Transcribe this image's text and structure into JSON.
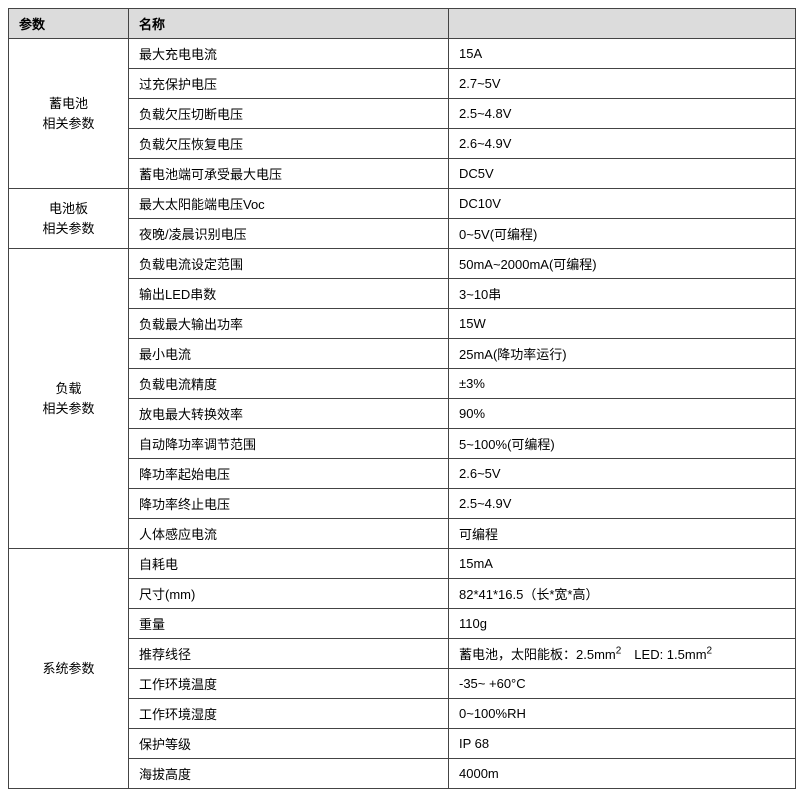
{
  "headers": {
    "c1": "参数",
    "c2": "名称",
    "c3": ""
  },
  "groups": [
    {
      "label": "蓄电池\n相关参数",
      "rows": [
        {
          "name": "最大充电电流",
          "value": "15A"
        },
        {
          "name": "过充保护电压",
          "value": "2.7~5V"
        },
        {
          "name": "负载欠压切断电压",
          "value": "2.5~4.8V"
        },
        {
          "name": "负载欠压恢复电压",
          "value": "2.6~4.9V"
        },
        {
          "name": "蓄电池端可承受最大电压",
          "value": "DC5V"
        }
      ]
    },
    {
      "label": "电池板\n相关参数",
      "rows": [
        {
          "name": "最大太阳能端电压Voc",
          "value": "DC10V"
        },
        {
          "name": "夜晚/凌晨识别电压",
          "value": "0~5V(可编程)"
        }
      ]
    },
    {
      "label": "负载\n相关参数",
      "rows": [
        {
          "name": "负载电流设定范围",
          "value": "50mA~2000mA(可编程)"
        },
        {
          "name": "输出LED串数",
          "value": "3~10串"
        },
        {
          "name": "负载最大输出功率",
          "value": "15W"
        },
        {
          "name": "最小电流",
          "value": "25mA(降功率运行)"
        },
        {
          "name": "负载电流精度",
          "value": "±3%"
        },
        {
          "name": "放电最大转换效率",
          "value": "90%"
        },
        {
          "name": "自动降功率调节范围",
          "value": "5~100%(可编程)"
        },
        {
          "name": "降功率起始电压",
          "value": "2.6~5V"
        },
        {
          "name": "降功率终止电压",
          "value": "2.5~4.9V"
        },
        {
          "name": "人体感应电流",
          "value": "可编程"
        }
      ]
    },
    {
      "label": "系统参数",
      "rows": [
        {
          "name": "自耗电",
          "value": "15mA"
        },
        {
          "name": "尺寸(mm)",
          "value": "82*41*16.5（长*宽*高）"
        },
        {
          "name": "重量",
          "value": "110g"
        },
        {
          "name": "推荐线径",
          "value_html": "蓄电池，太阳能板：2.5mm<sup>2</sup>　LED: 1.5mm<sup>2</sup>"
        },
        {
          "name": "工作环境温度",
          "value": "-35~ +60°C"
        },
        {
          "name": "工作环境湿度",
          "value": "0~100%RH"
        },
        {
          "name": "保护等级",
          "value": "IP 68"
        },
        {
          "name": "海拔高度",
          "value": "4000m"
        }
      ]
    }
  ],
  "colors": {
    "header_bg": "#dcdcdc",
    "border": "#444444",
    "background": "#ffffff"
  }
}
